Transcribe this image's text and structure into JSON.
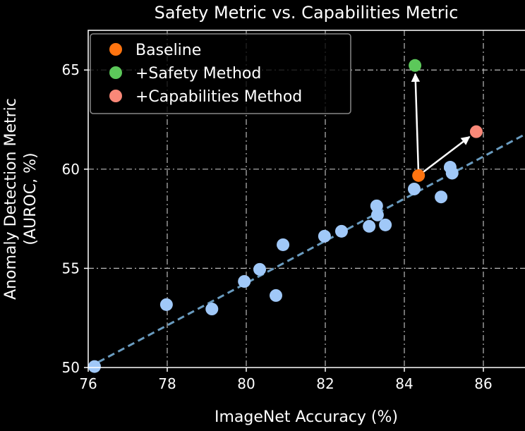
{
  "chart_data": {
    "type": "scatter",
    "title": "Safety Metric vs. Capabilities Metric",
    "xlabel": "ImageNet Accuracy (%)",
    "ylabel_lines": [
      "Anomaly Detection Metric",
      "(AUROC, %)"
    ],
    "xlim": [
      76,
      87
    ],
    "ylim": [
      50,
      67
    ],
    "xticks": [
      76,
      78,
      80,
      82,
      84,
      86
    ],
    "yticks": [
      50,
      55,
      60,
      65
    ],
    "grid": true,
    "legend_position": "top-left",
    "colors": {
      "points": "#a0c8f8",
      "baseline": "#ff7410",
      "safety": "#5cc85a",
      "capabilities": "#fa8878",
      "trend": "#6a9cc0"
    },
    "points": [
      [
        76.16,
        50.05
      ],
      [
        77.98,
        53.17
      ],
      [
        79.13,
        52.95
      ],
      [
        79.95,
        54.34
      ],
      [
        80.34,
        54.95
      ],
      [
        80.75,
        53.63
      ],
      [
        80.93,
        56.19
      ],
      [
        81.98,
        56.62
      ],
      [
        82.41,
        56.87
      ],
      [
        83.11,
        57.12
      ],
      [
        83.3,
        58.15
      ],
      [
        83.32,
        57.69
      ],
      [
        83.52,
        57.19
      ],
      [
        84.25,
        59.0
      ],
      [
        84.93,
        58.6
      ],
      [
        85.16,
        60.1
      ],
      [
        85.21,
        59.8
      ]
    ],
    "trend_line": [
      [
        76,
        50.0
      ],
      [
        87,
        61.7
      ]
    ],
    "highlighted": [
      {
        "name": "Baseline",
        "x": 84.36,
        "y": 59.68,
        "color_key": "baseline"
      },
      {
        "name": "+Safety Method",
        "x": 84.27,
        "y": 65.23,
        "color_key": "safety"
      },
      {
        "name": "+Capabilities Method",
        "x": 85.82,
        "y": 61.89,
        "color_key": "capabilities"
      }
    ],
    "arrows": [
      {
        "from": "Baseline",
        "to": "+Safety Method"
      },
      {
        "from": "Baseline",
        "to": "+Capabilities Method"
      }
    ]
  }
}
